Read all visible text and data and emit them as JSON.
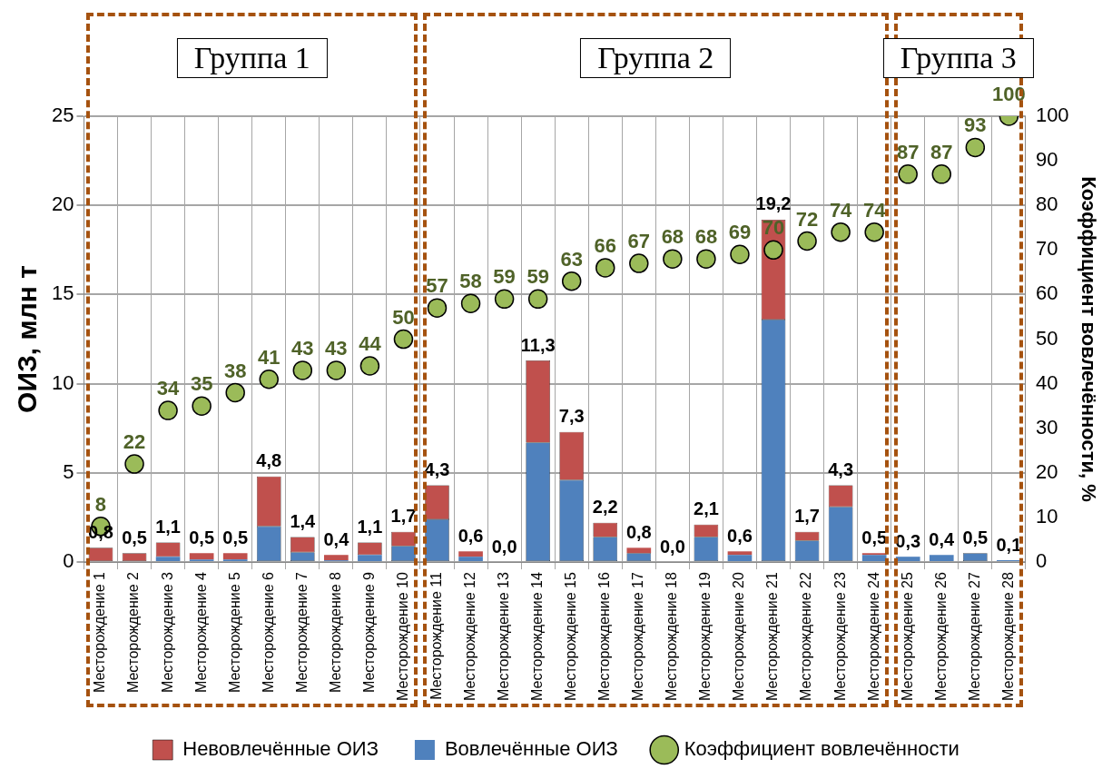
{
  "chart_data": {
    "type": "bar",
    "stacked": true,
    "categories": [
      "Месторождение 1",
      "Месторождение 2",
      "Месторождение 3",
      "Месторождение 4",
      "Месторождение 5",
      "Месторождение 6",
      "Месторождение 7",
      "Месторождение 8",
      "Месторождение 9",
      "Месторождение 10",
      "Месторождение 11",
      "Месторождение 12",
      "Месторождение 13",
      "Месторождение 14",
      "Месторождение 15",
      "Месторождение 16",
      "Месторождение 17",
      "Месторождение 18",
      "Месторождение 19",
      "Месторождение 20",
      "Месторождение 21",
      "Месторождение 22",
      "Месторождение 23",
      "Месторождение 24",
      "Месторождение 25",
      "Месторождение 26",
      "Месторождение 27",
      "Месторождение 28"
    ],
    "series": [
      {
        "name": "Вовлечённые ОИЗ",
        "color": "#4f81bd",
        "values": [
          0,
          0,
          0.3,
          0.15,
          0.15,
          2.0,
          0.55,
          0.1,
          0.4,
          0.9,
          2.4,
          0.3,
          0,
          6.7,
          4.6,
          1.4,
          0.5,
          0,
          1.4,
          0.4,
          13.6,
          1.2,
          3.1,
          0.4,
          0.3,
          0.4,
          0.5,
          0.1
        ]
      },
      {
        "name": "Невовлечённые ОИЗ",
        "color": "#c0504d",
        "values": [
          0.8,
          0.5,
          0.8,
          0.35,
          0.35,
          2.8,
          0.85,
          0.3,
          0.7,
          0.8,
          1.9,
          0.3,
          0,
          4.6,
          2.7,
          0.8,
          0.3,
          0,
          0.7,
          0.2,
          5.6,
          0.5,
          1.2,
          0.1,
          0,
          0,
          0,
          0
        ]
      },
      {
        "name": "Коэффициент вовлечённости",
        "type": "scatter",
        "axis": "y2",
        "color": "#9bbb59",
        "marker": "circle",
        "x": [
          "Месторождение 1",
          "Месторождение 2",
          "Месторождение 3",
          "Месторождение 4",
          "Месторождение 5",
          "Месторождение 6",
          "Месторождение 7",
          "Месторождение 8",
          "Месторождение 9",
          "Месторождение 10",
          "Месторождение 11",
          "Месторождение 12",
          "Месторождение 13",
          "Месторождение 14",
          "Месторождение 15",
          "Месторождение 16",
          "Месторождение 17",
          "Месторождение 18",
          "Месторождение 19",
          "Месторождение 20",
          "Месторождение 21",
          "Месторождение 22",
          "Месторождение 23",
          "Месторождение 24",
          "Месторождение 25",
          "Месторождение 26",
          "Месторождение 27",
          "Месторождение 28"
        ],
        "values": [
          8,
          22,
          34,
          35,
          38,
          41,
          43,
          43,
          44,
          50,
          57,
          58,
          59,
          59,
          63,
          66,
          67,
          68,
          68,
          69,
          70,
          72,
          74,
          74,
          87,
          87,
          93,
          100
        ],
        "value_labels": [
          "8",
          "22",
          "34",
          "35",
          "38",
          "41",
          "43",
          "43",
          "44",
          "50",
          "57",
          "58",
          "59",
          "59",
          "63",
          "66",
          "67",
          "68",
          "68",
          "69",
          "70",
          "72",
          "74",
          "74",
          "87",
          "87",
          "93",
          "100"
        ]
      }
    ],
    "totals": [
      "0,8",
      "0,5",
      "1,1",
      "0,5",
      "0,5",
      "4,8",
      "1,4",
      "0,4",
      "1,1",
      "1,7",
      "4,3",
      "0,6",
      "0,0",
      "11,3",
      "7,3",
      "2,2",
      "0,8",
      "0,0",
      "2,1",
      "0,6",
      "19,2",
      "1,7",
      "4,3",
      "0,5",
      "0,3",
      "0,4",
      "0,5",
      "0,1"
    ],
    "ylabel": "ОИЗ, млн т",
    "y2label": "Коэффициент вовлечённости, %",
    "ylim": [
      0,
      25
    ],
    "yticks": [
      0,
      5,
      10,
      15,
      20,
      25
    ],
    "y2lim": [
      0,
      100
    ],
    "y2ticks": [
      0,
      10,
      20,
      30,
      40,
      50,
      60,
      70,
      80,
      90,
      100
    ],
    "annotations": [
      "Группа 1",
      "Группа 2",
      "Группа 3"
    ],
    "grid": true,
    "legend": "bottom"
  }
}
